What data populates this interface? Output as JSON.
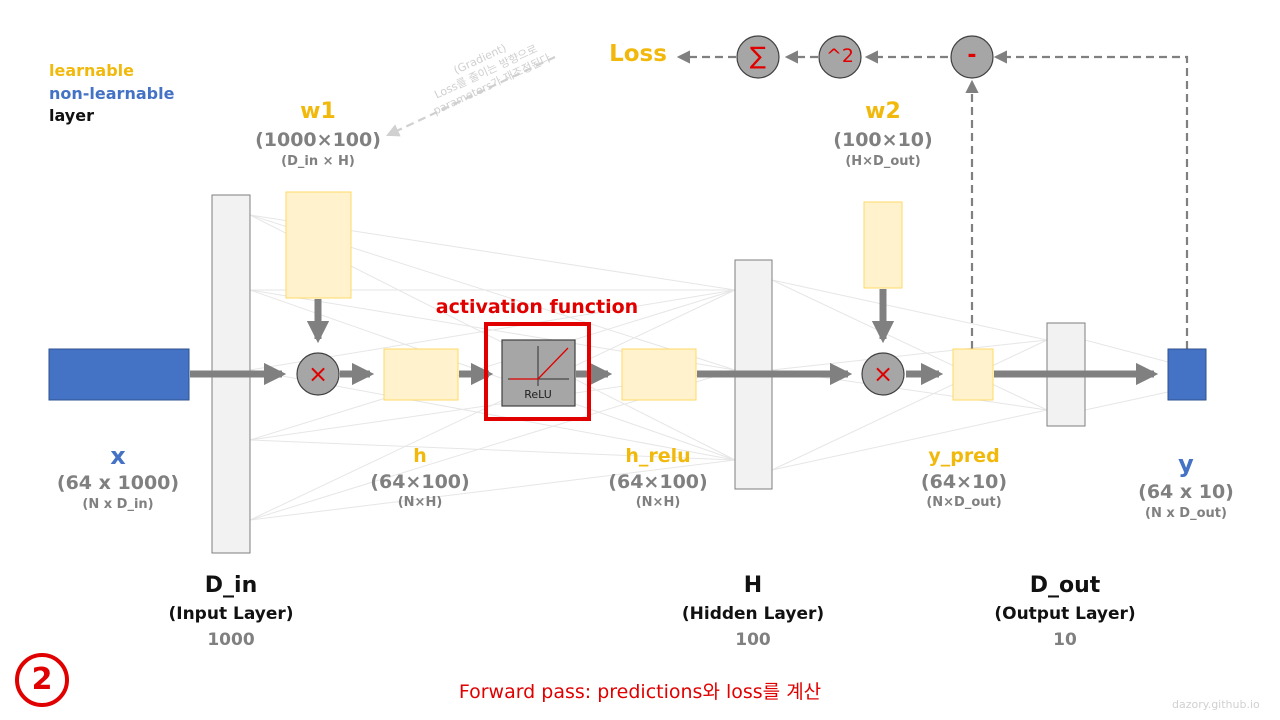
{
  "legend": {
    "learnable": "learnable",
    "non_learnable": "non-learnable",
    "layer": "layer"
  },
  "colors": {
    "learnable": "#f2b90d",
    "non_learnable": "#4472c4",
    "layer": "#111111",
    "highlight": "#e00000"
  },
  "gradient_note": {
    "line1": "(Gradient)",
    "line2": "Loss를 줄이는 방향으로",
    "line3": "parameters가 재조정된다"
  },
  "loss": {
    "label": "Loss",
    "sum_symbol": "∑",
    "square_symbol": "^2",
    "minus_symbol": "-"
  },
  "w1": {
    "name": "w1",
    "shape": "(1000×100)",
    "dims": "(D_in × H)"
  },
  "w2": {
    "name": "w2",
    "shape": "(100×10)",
    "dims": "(H×D_out)"
  },
  "activation": {
    "title": "activation function",
    "name": "ReLU"
  },
  "x": {
    "name": "x",
    "shape": "(64 x 1000)",
    "dims": "(N x D_in)"
  },
  "h": {
    "name": "h",
    "shape": "(64×100)",
    "dims": "(N×H)"
  },
  "h_relu": {
    "name": "h_relu",
    "shape": "(64×100)",
    "dims": "(N×H)"
  },
  "y_pred": {
    "name": "y_pred",
    "shape": "(64×10)",
    "dims": "(N×D_out)"
  },
  "y": {
    "name": "y",
    "shape": "(64 x 10)",
    "dims": "(N x D_out)"
  },
  "layers": [
    {
      "name": "D_in",
      "role": "(Input Layer)",
      "size": "1000"
    },
    {
      "name": "H",
      "role": "(Hidden Layer)",
      "size": "100"
    },
    {
      "name": "D_out",
      "role": "(Output Layer)",
      "size": "10"
    }
  ],
  "operators": {
    "multiply": "×"
  },
  "step": {
    "number": "2"
  },
  "caption": "Forward pass: predictions와 loss를 계산",
  "watermark": "dazory.github.io"
}
